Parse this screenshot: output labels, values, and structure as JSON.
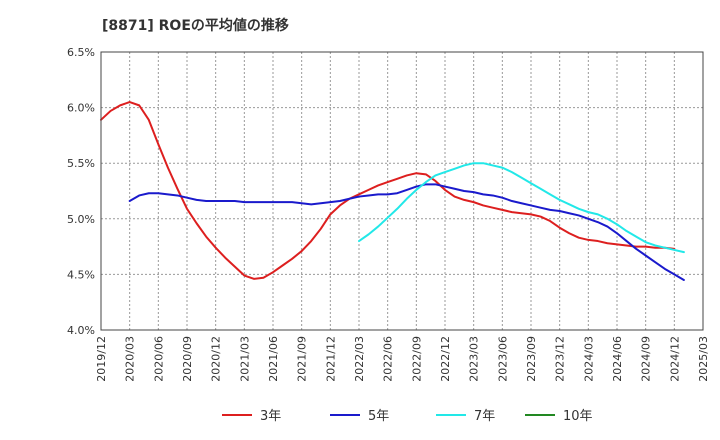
{
  "chart_data": {
    "type": "line",
    "title": "[8871]  ROEの平均値の推移",
    "xlabel": "",
    "ylabel": "",
    "ylim": [
      4.0,
      6.5
    ],
    "y_ticks": [
      "6.5%",
      "6.0%",
      "5.5%",
      "5.0%",
      "4.5%",
      "4.0%"
    ],
    "x_ticks": [
      "2019/12",
      "2020/03",
      "2020/06",
      "2020/09",
      "2020/12",
      "2021/03",
      "2021/06",
      "2021/09",
      "2021/12",
      "2022/03",
      "2022/06",
      "2022/09",
      "2022/12",
      "2023/03",
      "2023/06",
      "2023/09",
      "2023/12",
      "2024/03",
      "2024/06",
      "2024/09",
      "2024/12",
      "2025/03"
    ],
    "x_start": "2019/12",
    "x_end": "2025/03",
    "grid": true,
    "legend_position": "bottom",
    "colors": {
      "series_3y": "#dd1f1f",
      "series_5y": "#1a1acc",
      "series_7y": "#22e8e8",
      "series_10y": "#228822",
      "grid": "#999999",
      "axis": "#444444"
    },
    "series": [
      {
        "name": "3年",
        "color": "#dd1f1f",
        "points": [
          [
            "2019/12",
            5.89
          ],
          [
            "2020/01",
            5.97
          ],
          [
            "2020/02",
            6.02
          ],
          [
            "2020/03",
            6.05
          ],
          [
            "2020/04",
            6.02
          ],
          [
            "2020/05",
            5.89
          ],
          [
            "2020/06",
            5.67
          ],
          [
            "2020/07",
            5.46
          ],
          [
            "2020/08",
            5.27
          ],
          [
            "2020/09",
            5.09
          ],
          [
            "2020/10",
            4.96
          ],
          [
            "2020/11",
            4.84
          ],
          [
            "2020/12",
            4.74
          ],
          [
            "2021/01",
            4.65
          ],
          [
            "2021/02",
            4.57
          ],
          [
            "2021/03",
            4.49
          ],
          [
            "2021/04",
            4.46
          ],
          [
            "2021/05",
            4.47
          ],
          [
            "2021/06",
            4.52
          ],
          [
            "2021/07",
            4.58
          ],
          [
            "2021/08",
            4.64
          ],
          [
            "2021/09",
            4.71
          ],
          [
            "2021/10",
            4.8
          ],
          [
            "2021/11",
            4.91
          ],
          [
            "2021/12",
            5.04
          ],
          [
            "2022/01",
            5.12
          ],
          [
            "2022/02",
            5.18
          ],
          [
            "2022/03",
            5.22
          ],
          [
            "2022/04",
            5.26
          ],
          [
            "2022/05",
            5.3
          ],
          [
            "2022/06",
            5.33
          ],
          [
            "2022/07",
            5.36
          ],
          [
            "2022/08",
            5.39
          ],
          [
            "2022/09",
            5.41
          ],
          [
            "2022/10",
            5.4
          ],
          [
            "2022/11",
            5.34
          ],
          [
            "2022/12",
            5.26
          ],
          [
            "2023/01",
            5.2
          ],
          [
            "2023/02",
            5.17
          ],
          [
            "2023/03",
            5.15
          ],
          [
            "2023/04",
            5.12
          ],
          [
            "2023/05",
            5.1
          ],
          [
            "2023/06",
            5.08
          ],
          [
            "2023/07",
            5.06
          ],
          [
            "2023/08",
            5.05
          ],
          [
            "2023/09",
            5.04
          ],
          [
            "2023/10",
            5.02
          ],
          [
            "2023/11",
            4.98
          ],
          [
            "2023/12",
            4.92
          ],
          [
            "2024/01",
            4.87
          ],
          [
            "2024/02",
            4.83
          ],
          [
            "2024/03",
            4.81
          ],
          [
            "2024/04",
            4.8
          ],
          [
            "2024/05",
            4.78
          ],
          [
            "2024/06",
            4.77
          ],
          [
            "2024/07",
            4.76
          ],
          [
            "2024/08",
            4.75
          ],
          [
            "2024/09",
            4.75
          ],
          [
            "2024/10",
            4.74
          ],
          [
            "2024/11",
            4.74
          ],
          [
            "2024/12",
            4.73
          ]
        ]
      },
      {
        "name": "5年",
        "color": "#1a1acc",
        "points": [
          [
            "2020/03",
            5.16
          ],
          [
            "2020/04",
            5.21
          ],
          [
            "2020/05",
            5.23
          ],
          [
            "2020/06",
            5.23
          ],
          [
            "2020/07",
            5.22
          ],
          [
            "2020/08",
            5.21
          ],
          [
            "2020/09",
            5.19
          ],
          [
            "2020/10",
            5.17
          ],
          [
            "2020/11",
            5.16
          ],
          [
            "2020/12",
            5.16
          ],
          [
            "2021/01",
            5.16
          ],
          [
            "2021/02",
            5.16
          ],
          [
            "2021/03",
            5.15
          ],
          [
            "2021/04",
            5.15
          ],
          [
            "2021/05",
            5.15
          ],
          [
            "2021/06",
            5.15
          ],
          [
            "2021/07",
            5.15
          ],
          [
            "2021/08",
            5.15
          ],
          [
            "2021/09",
            5.14
          ],
          [
            "2021/10",
            5.13
          ],
          [
            "2021/11",
            5.14
          ],
          [
            "2021/12",
            5.15
          ],
          [
            "2022/01",
            5.16
          ],
          [
            "2022/02",
            5.18
          ],
          [
            "2022/03",
            5.2
          ],
          [
            "2022/04",
            5.21
          ],
          [
            "2022/05",
            5.22
          ],
          [
            "2022/06",
            5.22
          ],
          [
            "2022/07",
            5.23
          ],
          [
            "2022/08",
            5.26
          ],
          [
            "2022/09",
            5.29
          ],
          [
            "2022/10",
            5.31
          ],
          [
            "2022/11",
            5.31
          ],
          [
            "2022/12",
            5.29
          ],
          [
            "2023/01",
            5.27
          ],
          [
            "2023/02",
            5.25
          ],
          [
            "2023/03",
            5.24
          ],
          [
            "2023/04",
            5.22
          ],
          [
            "2023/05",
            5.21
          ],
          [
            "2023/06",
            5.19
          ],
          [
            "2023/07",
            5.16
          ],
          [
            "2023/08",
            5.14
          ],
          [
            "2023/09",
            5.12
          ],
          [
            "2023/10",
            5.1
          ],
          [
            "2023/11",
            5.08
          ],
          [
            "2023/12",
            5.07
          ],
          [
            "2024/01",
            5.05
          ],
          [
            "2024/02",
            5.03
          ],
          [
            "2024/03",
            5.0
          ],
          [
            "2024/04",
            4.97
          ],
          [
            "2024/05",
            4.93
          ],
          [
            "2024/06",
            4.87
          ],
          [
            "2024/07",
            4.8
          ],
          [
            "2024/08",
            4.73
          ],
          [
            "2024/09",
            4.67
          ],
          [
            "2024/10",
            4.61
          ],
          [
            "2024/11",
            4.55
          ],
          [
            "2024/12",
            4.5
          ],
          [
            "2025/01",
            4.45
          ]
        ]
      },
      {
        "name": "7年",
        "color": "#22e8e8",
        "points": [
          [
            "2022/03",
            4.8
          ],
          [
            "2022/04",
            4.86
          ],
          [
            "2022/05",
            4.93
          ],
          [
            "2022/06",
            5.01
          ],
          [
            "2022/07",
            5.09
          ],
          [
            "2022/08",
            5.18
          ],
          [
            "2022/09",
            5.26
          ],
          [
            "2022/10",
            5.33
          ],
          [
            "2022/11",
            5.39
          ],
          [
            "2022/12",
            5.42
          ],
          [
            "2023/01",
            5.45
          ],
          [
            "2023/02",
            5.48
          ],
          [
            "2023/03",
            5.5
          ],
          [
            "2023/04",
            5.5
          ],
          [
            "2023/05",
            5.48
          ],
          [
            "2023/06",
            5.46
          ],
          [
            "2023/07",
            5.42
          ],
          [
            "2023/08",
            5.37
          ],
          [
            "2023/09",
            5.32
          ],
          [
            "2023/10",
            5.27
          ],
          [
            "2023/11",
            5.22
          ],
          [
            "2023/12",
            5.17
          ],
          [
            "2024/01",
            5.13
          ],
          [
            "2024/02",
            5.09
          ],
          [
            "2024/03",
            5.06
          ],
          [
            "2024/04",
            5.04
          ],
          [
            "2024/05",
            5.0
          ],
          [
            "2024/06",
            4.95
          ],
          [
            "2024/07",
            4.89
          ],
          [
            "2024/08",
            4.84
          ],
          [
            "2024/09",
            4.79
          ],
          [
            "2024/10",
            4.76
          ],
          [
            "2024/11",
            4.74
          ],
          [
            "2024/12",
            4.72
          ],
          [
            "2025/01",
            4.7
          ]
        ]
      },
      {
        "name": "10年",
        "color": "#228822",
        "points": []
      }
    ]
  }
}
